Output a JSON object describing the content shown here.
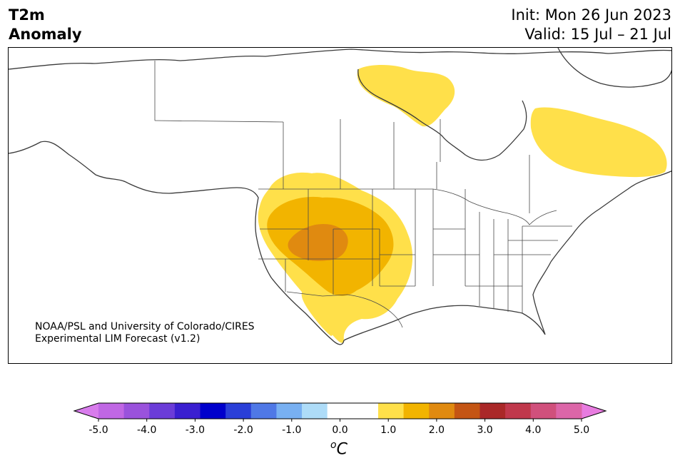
{
  "title": {
    "left_line1": "T2m",
    "left_line2": "Anomaly",
    "init": "Init: Mon 26 Jun 2023",
    "valid": "Valid: 15 Jul – 21 Jul"
  },
  "credit": {
    "line1": "NOAA/PSL and University of Colorado/CIRES",
    "line2": "Experimental LIM Forecast (v1.2)"
  },
  "colorbar": {
    "units_sup": "o",
    "units_main": "C",
    "min_color": "#d87cec",
    "max_color": "#e87ce0",
    "colors": [
      "#c067e4",
      "#9a52dc",
      "#6b3cd8",
      "#3a1fd0",
      "#0000cc",
      "#2a3fd8",
      "#4f78e6",
      "#78b0f2",
      "#aedcf8",
      "#ffffff",
      "#ffffff",
      "#ffe04a",
      "#f2b400",
      "#e08a10",
      "#c45514",
      "#aa2828",
      "#c0384c",
      "#d0507c",
      "#dc66a8"
    ],
    "tick_labels": [
      "-5.0",
      "-4.0",
      "-3.0",
      "-2.0",
      "-1.0",
      "0.0",
      "1.0",
      "2.0",
      "3.0",
      "4.0",
      "5.0"
    ]
  },
  "legend_levels": {
    "level1": "#ffe04a",
    "level2": "#f2b400",
    "level3": "#e08a10"
  }
}
